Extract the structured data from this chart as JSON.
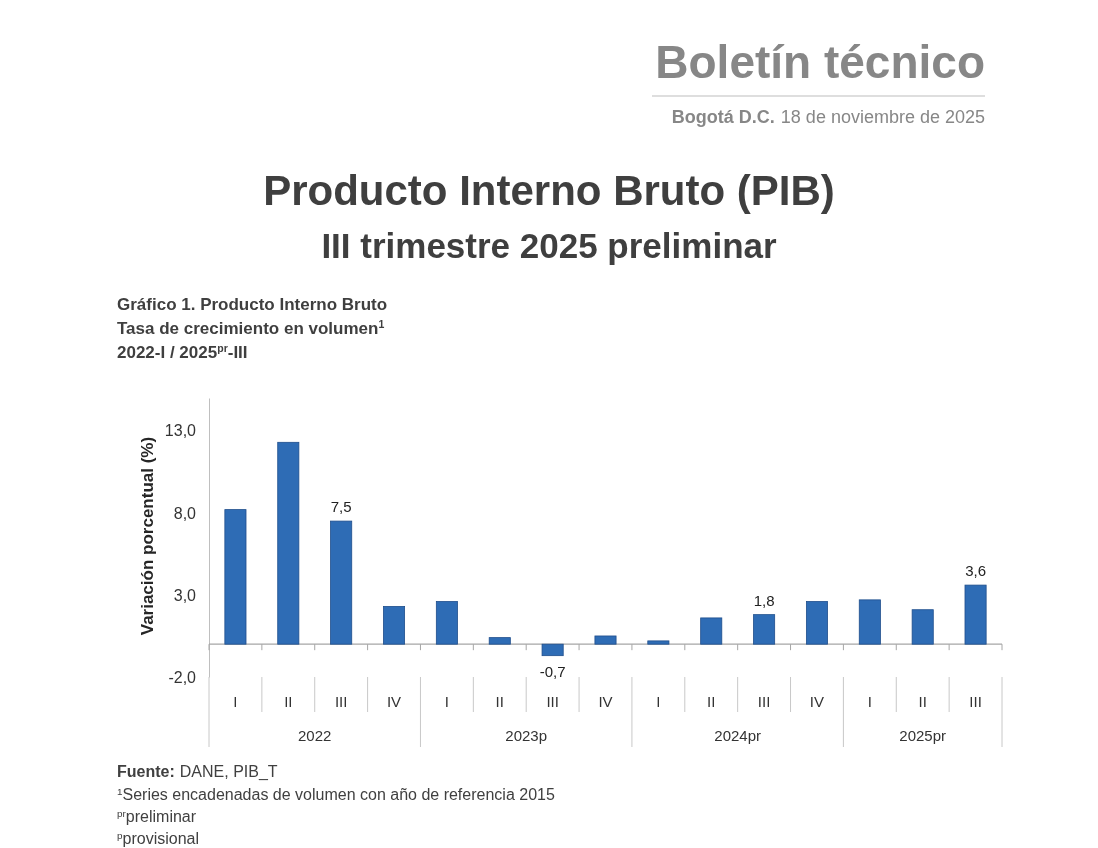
{
  "chart_data": {
    "type": "bar",
    "title": "Producto Interno Bruto (PIB)",
    "subtitle": "III trimestre 2025 preliminar",
    "ylabel": "Variación porcentual (%)",
    "categories": [
      "I",
      "II",
      "III",
      "IV",
      "I",
      "II",
      "III",
      "IV",
      "I",
      "II",
      "III",
      "IV",
      "I",
      "II",
      "III"
    ],
    "values": [
      8.2,
      12.3,
      7.5,
      2.3,
      2.6,
      0.4,
      -0.7,
      0.5,
      0.2,
      1.6,
      1.8,
      2.6,
      2.7,
      2.1,
      3.6
    ],
    "value_labels": [
      null,
      null,
      "7,5",
      null,
      null,
      null,
      "-0,7",
      null,
      null,
      null,
      "1,8",
      null,
      null,
      null,
      "3,6"
    ],
    "color": "#2e6cb5",
    "ylim": [
      -2,
      15
    ],
    "yticks": [
      {
        "value": -2,
        "label": "-2,0"
      },
      {
        "value": 3,
        "label": "3,0"
      },
      {
        "value": 8,
        "label": "8,0"
      },
      {
        "value": 13,
        "label": "13,0"
      }
    ],
    "annotations": [
      "Boletín técnico",
      "Bogotá D.C.",
      "18 de noviembre de 2025",
      "Gráfico 1. Producto Interno Bruto",
      "Tasa de crecimiento en volumen$^{1}$",
      "2022-I / 2025$^{pr}$-III",
      "2022",
      "2023p",
      "2024pr",
      "2025pr",
      "Fuente:",
      "DANE, PIB_T",
      "$^{1}$Series encadenadas de volumen con año de referencia 2015",
      "$^{pr}$preliminar",
      "$^{p}$provisional"
    ]
  }
}
